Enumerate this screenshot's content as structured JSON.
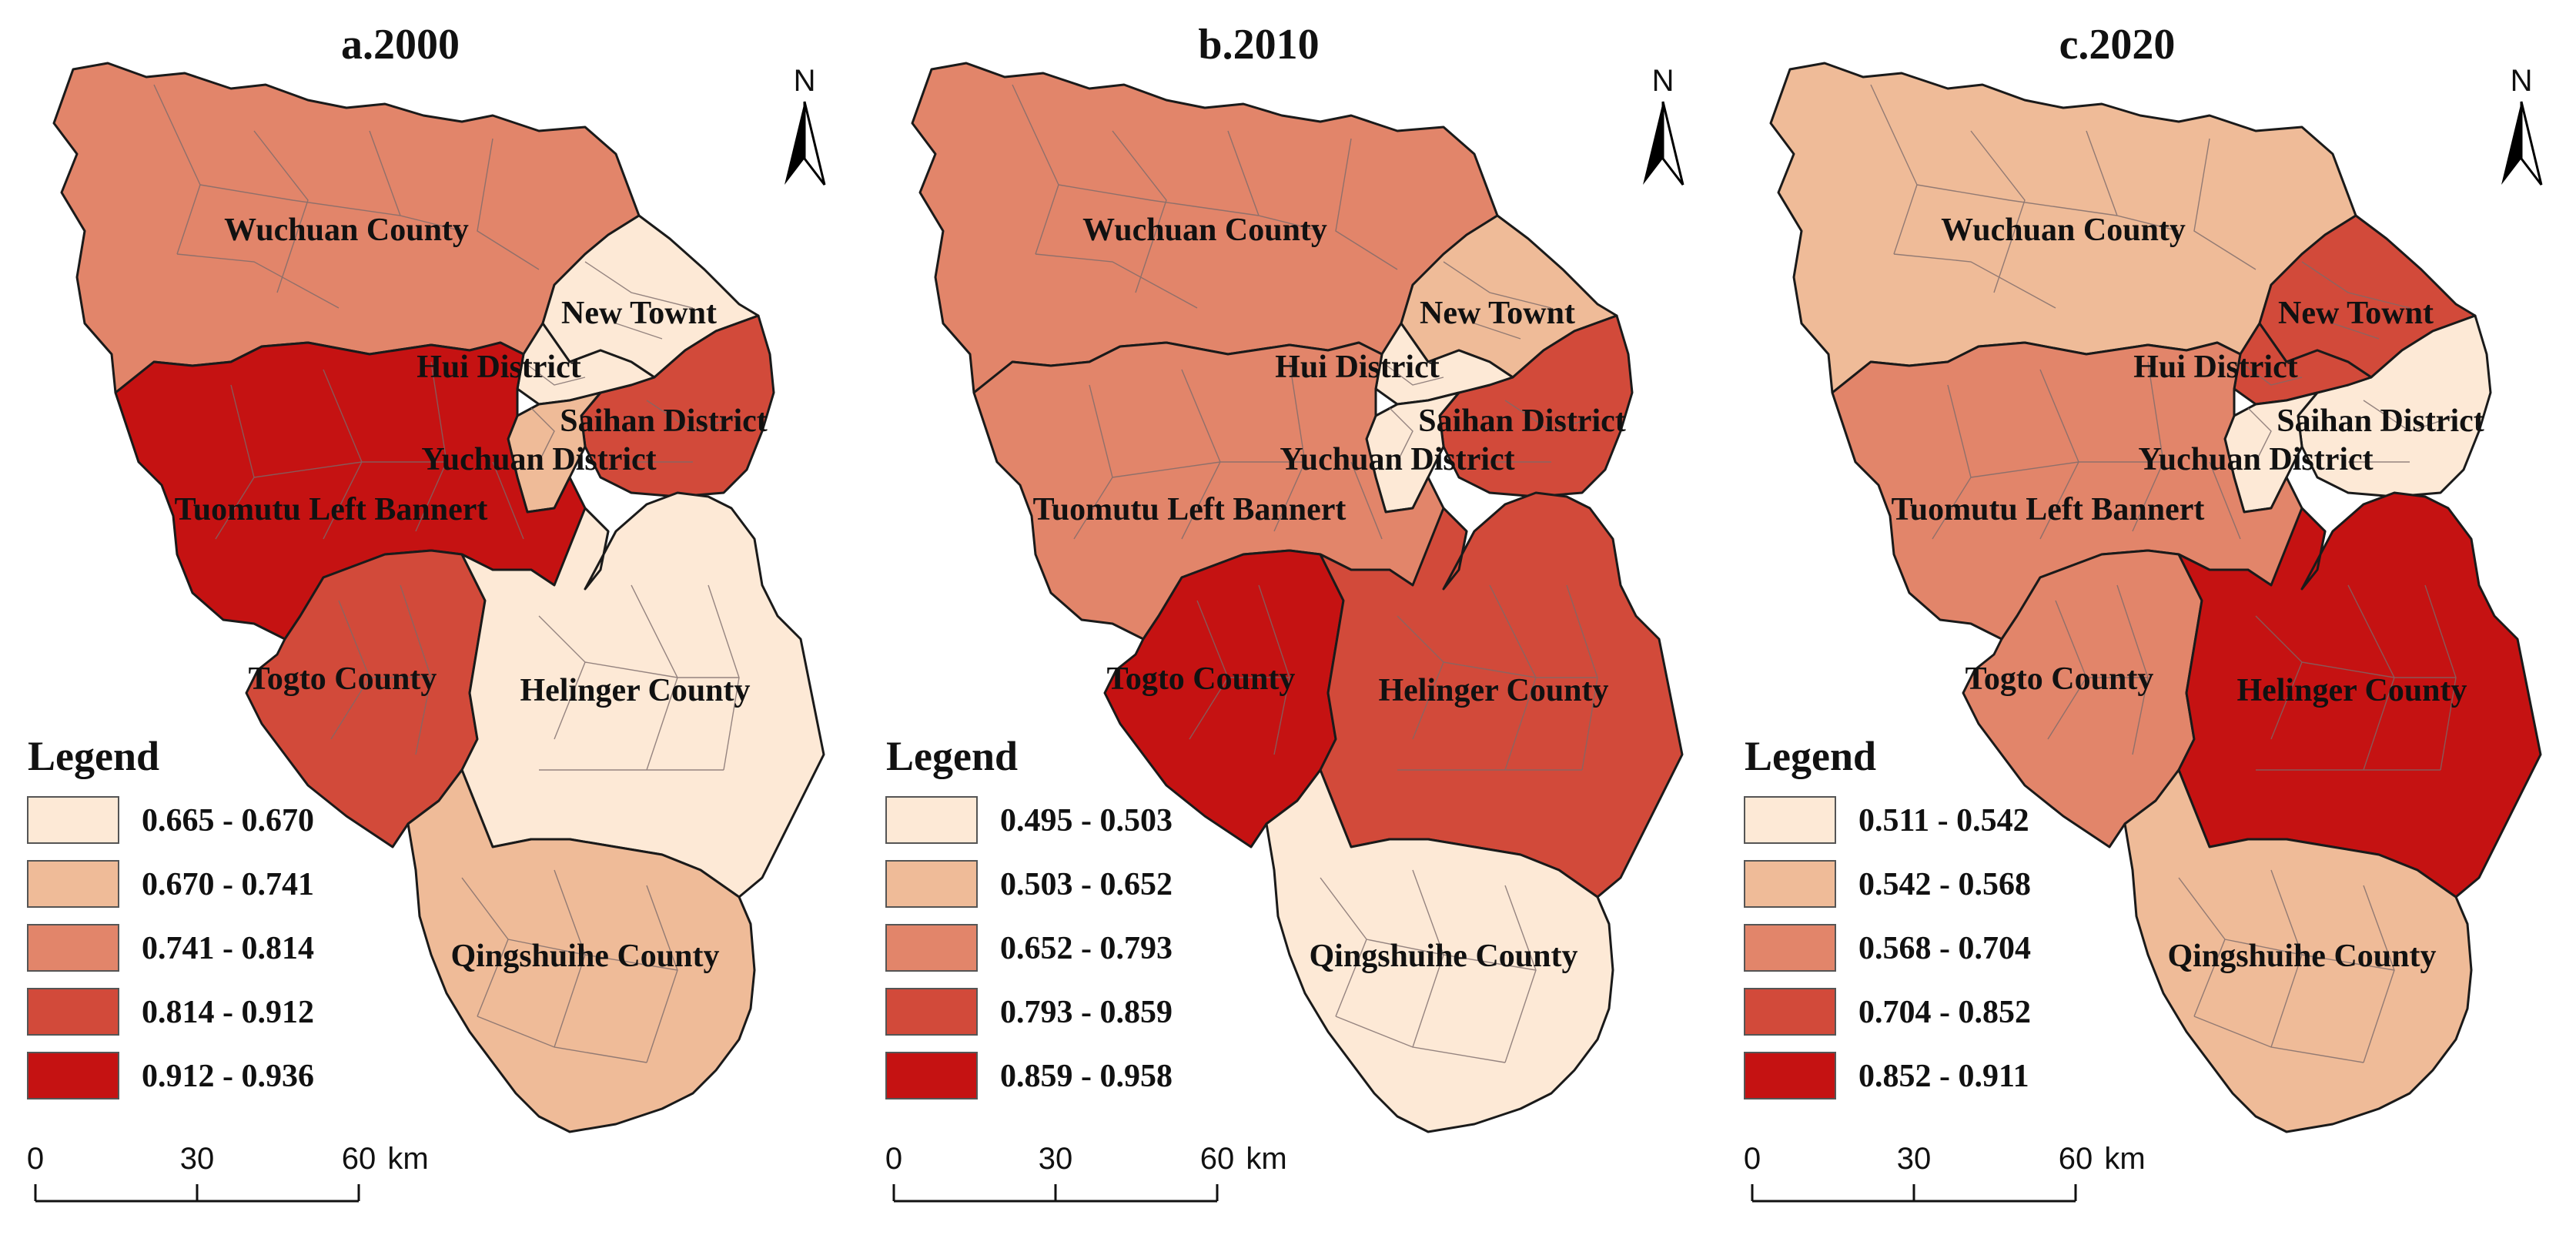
{
  "panels": [
    {
      "title": "a.2000",
      "legend_title": "Legend",
      "legend": [
        {
          "label": "0.665 - 0.670",
          "color": "#fde9d6"
        },
        {
          "label": "0.670 - 0.741",
          "color": "#efbb98"
        },
        {
          "label": "0.741 - 0.814",
          "color": "#e2856a"
        },
        {
          "label": "0.814 - 0.912",
          "color": "#d24a3a"
        },
        {
          "label": "0.912 - 0.936",
          "color": "#c51212"
        }
      ],
      "regions": {
        "wuchuan": {
          "label": "Wuchuan County",
          "class": 2
        },
        "newtown": {
          "label": "New Townt",
          "class": 0
        },
        "hui": {
          "label": "Hui District",
          "class": 0
        },
        "saihan": {
          "label": "Saihan District",
          "class": 3
        },
        "yuchuan": {
          "label": "Yuchuan District",
          "class": 1
        },
        "tuomutu": {
          "label": "Tuomutu Left Bannert",
          "class": 4
        },
        "togto": {
          "label": "Togto County",
          "class": 3
        },
        "helinger": {
          "label": "Helinger County",
          "class": 0
        },
        "qingshuihe": {
          "label": "Qingshuihe County",
          "class": 1
        }
      },
      "scale": {
        "ticks": [
          "0",
          "30",
          "60"
        ],
        "unit": "km"
      },
      "north": "N"
    },
    {
      "title": "b.2010",
      "legend_title": "Legend",
      "legend": [
        {
          "label": "0.495 - 0.503",
          "color": "#fde9d6"
        },
        {
          "label": "0.503 - 0.652",
          "color": "#efbb98"
        },
        {
          "label": "0.652 - 0.793",
          "color": "#e2856a"
        },
        {
          "label": "0.793 - 0.859",
          "color": "#d24a3a"
        },
        {
          "label": "0.859 - 0.958",
          "color": "#c51212"
        }
      ],
      "regions": {
        "wuchuan": {
          "label": "Wuchuan County",
          "class": 2
        },
        "newtown": {
          "label": "New Townt",
          "class": 1
        },
        "hui": {
          "label": "Hui District",
          "class": 0
        },
        "saihan": {
          "label": "Saihan District",
          "class": 3
        },
        "yuchuan": {
          "label": "Yuchuan District",
          "class": 0
        },
        "tuomutu": {
          "label": "Tuomutu Left Bannert",
          "class": 2
        },
        "togto": {
          "label": "Togto County",
          "class": 4
        },
        "helinger": {
          "label": "Helinger County",
          "class": 3
        },
        "qingshuihe": {
          "label": "Qingshuihe County",
          "class": 0
        }
      },
      "scale": {
        "ticks": [
          "0",
          "30",
          "60"
        ],
        "unit": "km"
      },
      "north": "N"
    },
    {
      "title": "c.2020",
      "legend_title": "Legend",
      "legend": [
        {
          "label": "0.511 - 0.542",
          "color": "#fde9d6"
        },
        {
          "label": "0.542 - 0.568",
          "color": "#efbb98"
        },
        {
          "label": "0.568 - 0.704",
          "color": "#e2856a"
        },
        {
          "label": "0.704 - 0.852",
          "color": "#d24a3a"
        },
        {
          "label": "0.852 - 0.911",
          "color": "#c51212"
        }
      ],
      "regions": {
        "wuchuan": {
          "label": "Wuchuan County",
          "class": 1
        },
        "newtown": {
          "label": "New Townt",
          "class": 3
        },
        "hui": {
          "label": "Hui District",
          "class": 3
        },
        "saihan": {
          "label": "Saihan District",
          "class": 0
        },
        "yuchuan": {
          "label": "Yuchuan District",
          "class": 0
        },
        "tuomutu": {
          "label": "Tuomutu Left Bannert",
          "class": 2
        },
        "togto": {
          "label": "Togto County",
          "class": 2
        },
        "helinger": {
          "label": "Helinger County",
          "class": 4
        },
        "qingshuihe": {
          "label": "Qingshuihe County",
          "class": 1
        }
      },
      "scale": {
        "ticks": [
          "0",
          "30",
          "60"
        ],
        "unit": "km"
      },
      "north": "N"
    }
  ]
}
